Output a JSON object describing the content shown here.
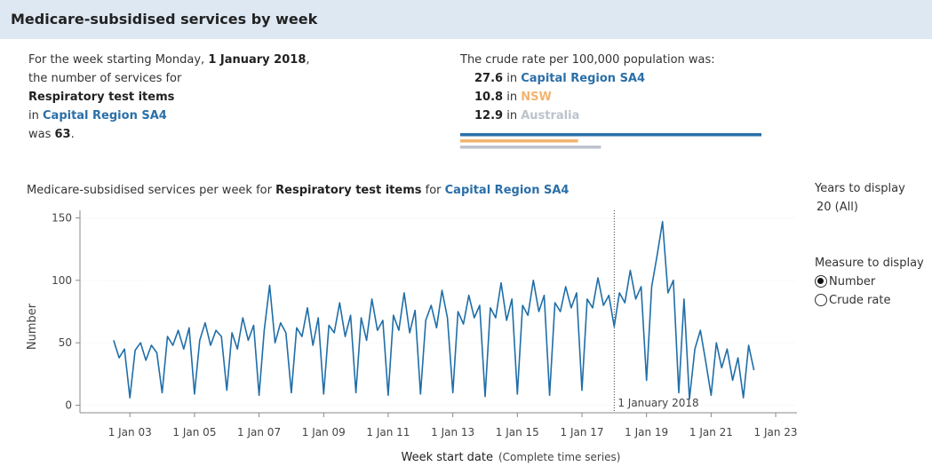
{
  "header": {
    "title": "Medicare-subsidised services by week"
  },
  "summary": {
    "intro": "For the week starting Monday,",
    "date": "1 January 2018",
    "comma": ",",
    "line2": "the number of services for",
    "item": "Respiratory test items",
    "in": "in",
    "region": "Capital Region SA4",
    "was": "was",
    "count": 63,
    "period": "."
  },
  "rates": {
    "heading": "The crude rate per 100,000 population was:",
    "connector": "in",
    "rows": [
      {
        "value": 27.6,
        "name": "Capital Region SA4",
        "color": "#2a6fa8"
      },
      {
        "value": 10.8,
        "name": "NSW",
        "color": "#f2b46e"
      },
      {
        "value": 12.9,
        "name": "Australia",
        "color": "#bcc3cc"
      }
    ]
  },
  "controls": {
    "years_label": "Years to display",
    "years_value": "20 (All)",
    "measure_label": "Measure to display",
    "options": [
      {
        "label": "Number",
        "selected": true
      },
      {
        "label": "Crude rate",
        "selected": false
      }
    ]
  },
  "chart_data": {
    "type": "line",
    "title_parts": [
      "Medicare-subsidised services per week for",
      "Respiratory test items",
      "for",
      "Capital Region SA4"
    ],
    "ylabel": "Number",
    "xlabel": "Week start date",
    "xlabel_note": "(Complete time series)",
    "xlim": [
      "2001-06-15",
      "2023-08-30"
    ],
    "ylim": [
      -6,
      156
    ],
    "yticks": [
      0,
      50,
      100,
      150
    ],
    "xticks": [
      {
        "value": "2003-01-01",
        "label": "1 Jan 03"
      },
      {
        "value": "2005-01-01",
        "label": "1 Jan 05"
      },
      {
        "value": "2007-01-01",
        "label": "1 Jan 07"
      },
      {
        "value": "2009-01-01",
        "label": "1 Jan 09"
      },
      {
        "value": "2011-01-01",
        "label": "1 Jan 11"
      },
      {
        "value": "2013-01-01",
        "label": "1 Jan 13"
      },
      {
        "value": "2015-01-01",
        "label": "1 Jan 15"
      },
      {
        "value": "2017-01-01",
        "label": "1 Jan 17"
      },
      {
        "value": "2019-01-01",
        "label": "1 Jan 19"
      },
      {
        "value": "2021-01-01",
        "label": "1 Jan 21"
      },
      {
        "value": "2023-01-01",
        "label": "1 Jan 23"
      }
    ],
    "grid": true,
    "reference_line": {
      "x": "2018-01-01",
      "label": "1 January 2018"
    },
    "x": [
      "2002-07-01",
      "2002-09-01",
      "2002-11-01",
      "2003-01-01",
      "2003-03-01",
      "2003-05-01",
      "2003-07-01",
      "2003-09-01",
      "2003-11-01",
      "2004-01-01",
      "2004-03-01",
      "2004-05-01",
      "2004-07-01",
      "2004-09-01",
      "2004-11-01",
      "2005-01-01",
      "2005-03-01",
      "2005-05-01",
      "2005-07-01",
      "2005-09-01",
      "2005-11-01",
      "2006-01-01",
      "2006-03-01",
      "2006-05-01",
      "2006-07-01",
      "2006-09-01",
      "2006-11-01",
      "2007-01-01",
      "2007-03-01",
      "2007-05-01",
      "2007-07-01",
      "2007-09-01",
      "2007-11-01",
      "2008-01-01",
      "2008-03-01",
      "2008-05-01",
      "2008-07-01",
      "2008-09-01",
      "2008-11-01",
      "2009-01-01",
      "2009-03-01",
      "2009-05-01",
      "2009-07-01",
      "2009-09-01",
      "2009-11-01",
      "2010-01-01",
      "2010-03-01",
      "2010-05-01",
      "2010-07-01",
      "2010-09-01",
      "2010-11-01",
      "2011-01-01",
      "2011-03-01",
      "2011-05-01",
      "2011-07-01",
      "2011-09-01",
      "2011-11-01",
      "2012-01-01",
      "2012-03-01",
      "2012-05-01",
      "2012-07-01",
      "2012-09-01",
      "2012-11-01",
      "2013-01-01",
      "2013-03-01",
      "2013-05-01",
      "2013-07-01",
      "2013-09-01",
      "2013-11-01",
      "2014-01-01",
      "2014-03-01",
      "2014-05-01",
      "2014-07-01",
      "2014-09-01",
      "2014-11-01",
      "2015-01-01",
      "2015-03-01",
      "2015-05-01",
      "2015-07-01",
      "2015-09-01",
      "2015-11-01",
      "2016-01-01",
      "2016-03-01",
      "2016-05-01",
      "2016-07-01",
      "2016-09-01",
      "2016-11-01",
      "2017-01-01",
      "2017-03-01",
      "2017-05-01",
      "2017-07-01",
      "2017-09-01",
      "2017-11-01",
      "2018-01-01",
      "2018-03-01",
      "2018-05-01",
      "2018-07-01",
      "2018-09-01",
      "2018-11-01",
      "2019-01-01",
      "2019-03-01",
      "2019-05-01",
      "2019-07-01",
      "2019-09-01",
      "2019-11-01",
      "2020-01-01",
      "2020-03-01",
      "2020-05-01",
      "2020-07-01",
      "2020-09-01",
      "2020-11-01",
      "2021-01-01",
      "2021-03-01",
      "2021-05-01",
      "2021-07-01",
      "2021-09-01",
      "2021-11-01",
      "2022-01-01",
      "2022-03-01",
      "2022-05-01"
    ],
    "series": [
      {
        "name": "Number",
        "color": "#1f6ea8",
        "values": [
          52,
          38,
          45,
          6,
          44,
          50,
          36,
          48,
          42,
          10,
          55,
          48,
          60,
          45,
          62,
          9,
          52,
          66,
          48,
          60,
          55,
          12,
          58,
          45,
          70,
          52,
          64,
          8,
          60,
          96,
          50,
          66,
          58,
          10,
          62,
          55,
          78,
          48,
          70,
          9,
          64,
          58,
          82,
          55,
          72,
          10,
          70,
          52,
          85,
          60,
          68,
          8,
          72,
          60,
          90,
          58,
          76,
          9,
          68,
          80,
          62,
          92,
          70,
          10,
          75,
          65,
          88,
          70,
          80,
          7,
          78,
          70,
          98,
          68,
          85,
          9,
          80,
          72,
          100,
          75,
          88,
          8,
          82,
          75,
          95,
          78,
          90,
          12,
          85,
          78,
          102,
          80,
          88,
          63,
          90,
          82,
          108,
          85,
          95,
          20,
          95,
          120,
          147,
          90,
          100,
          10,
          85,
          5,
          45,
          60,
          35,
          8,
          50,
          30,
          45,
          20,
          38,
          6,
          48,
          28
        ]
      }
    ]
  }
}
